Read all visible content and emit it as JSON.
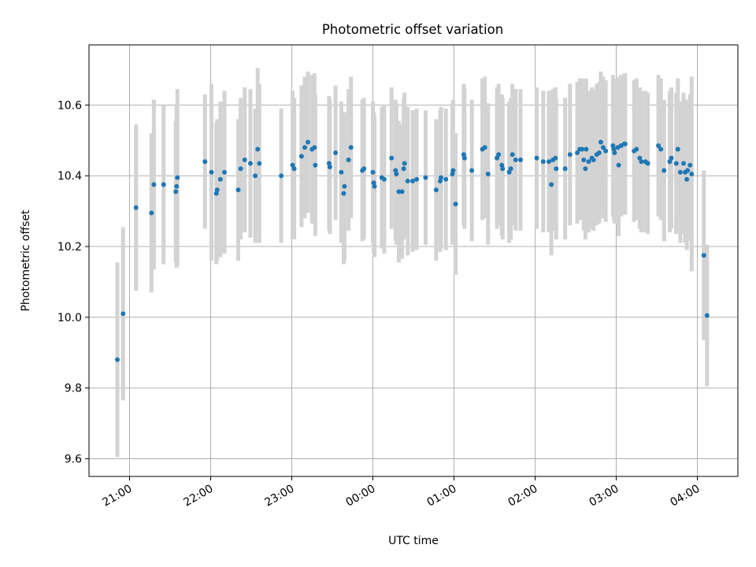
{
  "chart_data": {
    "type": "scatter",
    "title": "Photometric offset variation",
    "xlabel": "UTC time",
    "ylabel": "Photometric offset",
    "x_unit": "hours (UTC, relative to 00:00)",
    "xlim": [
      -3.5,
      4.5
    ],
    "ylim": [
      9.55,
      10.77
    ],
    "x_ticks": [
      {
        "value": -3,
        "label": "21:00"
      },
      {
        "value": -2,
        "label": "22:00"
      },
      {
        "value": -1,
        "label": "23:00"
      },
      {
        "value": 0,
        "label": "00:00"
      },
      {
        "value": 1,
        "label": "01:00"
      },
      {
        "value": 2,
        "label": "02:00"
      },
      {
        "value": 3,
        "label": "03:00"
      },
      {
        "value": 4,
        "label": "04:00"
      }
    ],
    "y_ticks": [
      {
        "value": 9.6,
        "label": "9.6"
      },
      {
        "value": 9.8,
        "label": "9.8"
      },
      {
        "value": 10.0,
        "label": "10.0"
      },
      {
        "value": 10.2,
        "label": "10.2"
      },
      {
        "value": 10.4,
        "label": "10.4"
      },
      {
        "value": 10.6,
        "label": "10.6"
      }
    ],
    "grid": true,
    "colors": {
      "marker": "#1f77b4",
      "errorbar": "#d3d3d3",
      "grid": "#b0b0b0"
    },
    "error_half_width": 0.2,
    "points": [
      [
        -3.15,
        9.88,
        0.275
      ],
      [
        -3.08,
        10.01,
        0.245
      ],
      [
        -2.92,
        10.31,
        0.235
      ],
      [
        -2.73,
        10.295,
        0.225
      ],
      [
        -2.7,
        10.375,
        0.24
      ],
      [
        -2.58,
        10.375,
        0.225
      ],
      [
        -2.43,
        10.355,
        0.2
      ],
      [
        -2.42,
        10.37,
        0.23
      ],
      [
        -2.41,
        10.395,
        0.25
      ],
      [
        -2.07,
        10.44,
        0.19
      ],
      [
        -1.99,
        10.41,
        0.25
      ],
      [
        -1.93,
        10.35,
        0.2
      ],
      [
        -1.92,
        10.36,
        0.2
      ],
      [
        -1.88,
        10.39,
        0.22
      ],
      [
        -1.83,
        10.41,
        0.23
      ],
      [
        -1.66,
        10.36,
        0.2
      ],
      [
        -1.63,
        10.42,
        0.2
      ],
      [
        -1.58,
        10.445,
        0.205
      ],
      [
        -1.51,
        10.435,
        0.21
      ],
      [
        -1.45,
        10.4,
        0.19
      ],
      [
        -1.42,
        10.475,
        0.23
      ],
      [
        -1.4,
        10.435,
        0.225
      ],
      [
        -1.13,
        10.4,
        0.19
      ],
      [
        -0.99,
        10.43,
        0.21
      ],
      [
        -0.97,
        10.42,
        0.2
      ],
      [
        -0.88,
        10.455,
        0.2
      ],
      [
        -0.84,
        10.48,
        0.2
      ],
      [
        -0.8,
        10.495,
        0.2
      ],
      [
        -0.75,
        10.475,
        0.21
      ],
      [
        -0.72,
        10.48,
        0.21
      ],
      [
        -0.71,
        10.43,
        0.2
      ],
      [
        -0.54,
        10.435,
        0.19
      ],
      [
        -0.53,
        10.425,
        0.19
      ],
      [
        -0.46,
        10.465,
        0.19
      ],
      [
        -0.39,
        10.41,
        0.2
      ],
      [
        -0.36,
        10.35,
        0.2
      ],
      [
        -0.35,
        10.37,
        0.21
      ],
      [
        -0.3,
        10.445,
        0.2
      ],
      [
        -0.27,
        10.48,
        0.2
      ],
      [
        -0.13,
        10.415,
        0.2
      ],
      [
        -0.11,
        10.42,
        0.2
      ],
      [
        0.0,
        10.41,
        0.2
      ],
      [
        0.01,
        10.38,
        0.2
      ],
      [
        0.02,
        10.37,
        0.2
      ],
      [
        0.11,
        10.395,
        0.2
      ],
      [
        0.14,
        10.39,
        0.21
      ],
      [
        0.23,
        10.45,
        0.2
      ],
      [
        0.28,
        10.415,
        0.2
      ],
      [
        0.29,
        10.405,
        0.2
      ],
      [
        0.32,
        10.355,
        0.2
      ],
      [
        0.36,
        10.355,
        0.19
      ],
      [
        0.38,
        10.42,
        0.2
      ],
      [
        0.39,
        10.435,
        0.2
      ],
      [
        0.43,
        10.385,
        0.21
      ],
      [
        0.49,
        10.385,
        0.2
      ],
      [
        0.54,
        10.39,
        0.2
      ],
      [
        0.65,
        10.395,
        0.19
      ],
      [
        0.78,
        10.36,
        0.2
      ],
      [
        0.83,
        10.385,
        0.2
      ],
      [
        0.84,
        10.395,
        0.2
      ],
      [
        0.9,
        10.39,
        0.2
      ],
      [
        0.98,
        10.405,
        0.2
      ],
      [
        0.99,
        10.415,
        0.2
      ],
      [
        1.02,
        10.32,
        0.2
      ],
      [
        1.12,
        10.46,
        0.2
      ],
      [
        1.13,
        10.45,
        0.2
      ],
      [
        1.22,
        10.415,
        0.2
      ],
      [
        1.35,
        10.475,
        0.2
      ],
      [
        1.38,
        10.48,
        0.2
      ],
      [
        1.42,
        10.405,
        0.2
      ],
      [
        1.53,
        10.45,
        0.2
      ],
      [
        1.55,
        10.46,
        0.2
      ],
      [
        1.59,
        10.43,
        0.2
      ],
      [
        1.6,
        10.42,
        0.2
      ],
      [
        1.68,
        10.41,
        0.2
      ],
      [
        1.7,
        10.42,
        0.2
      ],
      [
        1.72,
        10.46,
        0.2
      ],
      [
        1.76,
        10.445,
        0.2
      ],
      [
        1.82,
        10.445,
        0.2
      ],
      [
        2.02,
        10.45,
        0.2
      ],
      [
        2.1,
        10.44,
        0.2
      ],
      [
        2.17,
        10.44,
        0.2
      ],
      [
        2.2,
        10.375,
        0.2
      ],
      [
        2.22,
        10.445,
        0.2
      ],
      [
        2.25,
        10.45,
        0.2
      ],
      [
        2.26,
        10.42,
        0.2
      ],
      [
        2.37,
        10.42,
        0.2
      ],
      [
        2.43,
        10.46,
        0.2
      ],
      [
        2.52,
        10.465,
        0.2
      ],
      [
        2.55,
        10.475,
        0.2
      ],
      [
        2.58,
        10.475,
        0.2
      ],
      [
        2.6,
        10.445,
        0.2
      ],
      [
        2.62,
        10.42,
        0.2
      ],
      [
        2.63,
        10.475,
        0.2
      ],
      [
        2.66,
        10.44,
        0.2
      ],
      [
        2.7,
        10.45,
        0.2
      ],
      [
        2.72,
        10.445,
        0.2
      ],
      [
        2.76,
        10.46,
        0.2
      ],
      [
        2.79,
        10.465,
        0.2
      ],
      [
        2.81,
        10.495,
        0.2
      ],
      [
        2.84,
        10.48,
        0.2
      ],
      [
        2.87,
        10.47,
        0.2
      ],
      [
        2.96,
        10.485,
        0.2
      ],
      [
        2.97,
        10.475,
        0.2
      ],
      [
        2.98,
        10.465,
        0.2
      ],
      [
        3.02,
        10.48,
        0.2
      ],
      [
        3.03,
        10.43,
        0.2
      ],
      [
        3.06,
        10.485,
        0.2
      ],
      [
        3.1,
        10.49,
        0.2
      ],
      [
        3.11,
        10.49,
        0.2
      ],
      [
        3.22,
        10.47,
        0.2
      ],
      [
        3.25,
        10.475,
        0.2
      ],
      [
        3.29,
        10.45,
        0.2
      ],
      [
        3.31,
        10.44,
        0.2
      ],
      [
        3.36,
        10.44,
        0.2
      ],
      [
        3.39,
        10.435,
        0.2
      ],
      [
        3.52,
        10.485,
        0.2
      ],
      [
        3.55,
        10.475,
        0.2
      ],
      [
        3.59,
        10.415,
        0.2
      ],
      [
        3.66,
        10.44,
        0.2
      ],
      [
        3.68,
        10.45,
        0.2
      ],
      [
        3.74,
        10.435,
        0.2
      ],
      [
        3.76,
        10.475,
        0.2
      ],
      [
        3.79,
        10.41,
        0.2
      ],
      [
        3.83,
        10.435,
        0.2
      ],
      [
        3.85,
        10.41,
        0.2
      ],
      [
        3.87,
        10.39,
        0.2
      ],
      [
        3.88,
        10.415,
        0.2
      ],
      [
        3.91,
        10.43,
        0.2
      ],
      [
        3.93,
        10.405,
        0.275
      ],
      [
        4.08,
        10.175,
        0.24
      ],
      [
        4.12,
        10.005,
        0.2
      ]
    ]
  }
}
